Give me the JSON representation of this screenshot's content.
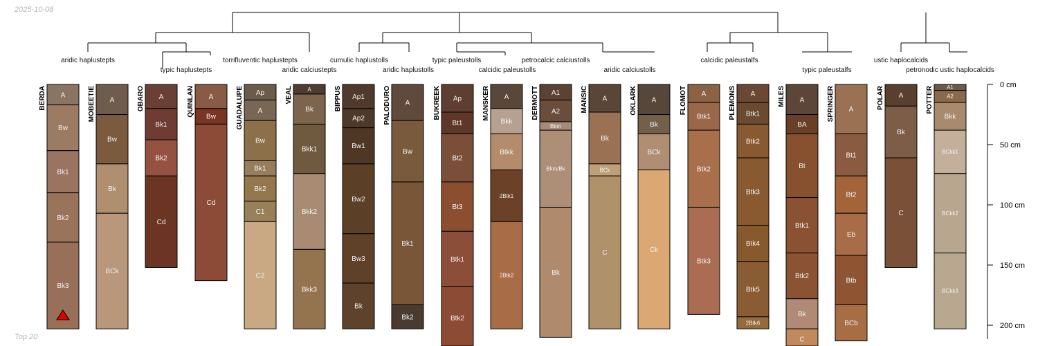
{
  "date": "2025-10-08",
  "footer": "Top 20",
  "depth_axis": {
    "unit": "cm",
    "ticks": [
      {
        "depth": 0,
        "label": "0 cm"
      },
      {
        "depth": 50,
        "label": "50 cm"
      },
      {
        "depth": 100,
        "label": "100 cm"
      },
      {
        "depth": 150,
        "label": "150 cm"
      },
      {
        "depth": 200,
        "label": "200 cm"
      }
    ]
  },
  "groups": [
    {
      "label": "aridic haplustepts"
    },
    {
      "label": "typic haplustepts"
    },
    {
      "label": "torrifluventic haplustepts"
    },
    {
      "label": "aridic calciustepts"
    },
    {
      "label": "cumulic haplustolls"
    },
    {
      "label": "aridic haplustolls"
    },
    {
      "label": "typic paleustolls"
    },
    {
      "label": "calcidic paleustolls"
    },
    {
      "label": "petrocalcic calciustolls"
    },
    {
      "label": "aridic calciustolls"
    },
    {
      "label": "calcidic paleustalfs"
    },
    {
      "label": "typic paleustalfs"
    },
    {
      "label": "ustic haplocalcids"
    },
    {
      "label": "petronodic ustic haplocalcids"
    }
  ],
  "profiles": [
    {
      "name": "BERDA",
      "marker": "red-triangle",
      "horizons": [
        {
          "name": "A",
          "top": 0,
          "bottom": 17,
          "color": "#8a7562"
        },
        {
          "name": "Bw",
          "top": 17,
          "bottom": 55,
          "color": "#9b7b62"
        },
        {
          "name": "Bk1",
          "top": 55,
          "bottom": 90,
          "color": "#9a7460"
        },
        {
          "name": "Bk2",
          "top": 90,
          "bottom": 131,
          "color": "#9a735b"
        },
        {
          "name": "Bk3",
          "top": 131,
          "bottom": 203,
          "color": "#98705a"
        }
      ]
    },
    {
      "name": "MOBEETIE",
      "horizons": [
        {
          "name": "A",
          "top": 0,
          "bottom": 25,
          "color": "#6f5c4c"
        },
        {
          "name": "Bw",
          "top": 25,
          "bottom": 66,
          "color": "#7b5a3e"
        },
        {
          "name": "Bk",
          "top": 66,
          "bottom": 107,
          "color": "#b08e70"
        },
        {
          "name": "BCk",
          "top": 107,
          "bottom": 203,
          "color": "#b8977b"
        }
      ]
    },
    {
      "name": "OBARO",
      "horizons": [
        {
          "name": "A",
          "top": 0,
          "bottom": 20,
          "color": "#6a4034"
        },
        {
          "name": "Bk1",
          "top": 20,
          "bottom": 46,
          "color": "#6e3c31"
        },
        {
          "name": "Bk2",
          "top": 46,
          "bottom": 76,
          "color": "#955240"
        },
        {
          "name": "Cd",
          "top": 76,
          "bottom": 152,
          "color": "#6c3523"
        }
      ]
    },
    {
      "name": "QUINLAN",
      "horizons": [
        {
          "name": "A",
          "top": 0,
          "bottom": 20,
          "color": "#8a5b44"
        },
        {
          "name": "Bw",
          "top": 20,
          "bottom": 33,
          "color": "#7a3422"
        },
        {
          "name": "Cd",
          "top": 33,
          "bottom": 163,
          "color": "#8b4b36"
        }
      ]
    },
    {
      "name": "GUADALUPE",
      "horizons": [
        {
          "name": "Ap",
          "top": 0,
          "bottom": 13,
          "color": "#6a5b4c"
        },
        {
          "name": "A",
          "top": 13,
          "bottom": 30,
          "color": "#7a6654"
        },
        {
          "name": "Bw",
          "top": 30,
          "bottom": 63,
          "color": "#8b7049"
        },
        {
          "name": "Bk1",
          "top": 63,
          "bottom": 76,
          "color": "#957d5d"
        },
        {
          "name": "Bk2",
          "top": 76,
          "bottom": 97,
          "color": "#94774d"
        },
        {
          "name": "C1",
          "top": 97,
          "bottom": 114,
          "color": "#9a8059"
        },
        {
          "name": "C2",
          "top": 114,
          "bottom": 203,
          "color": "#c8a983"
        }
      ]
    },
    {
      "name": "VEAL",
      "horizons": [
        {
          "name": "A",
          "top": 0,
          "bottom": 8,
          "color": "#4d3c2f"
        },
        {
          "name": "Bk",
          "top": 8,
          "bottom": 33,
          "color": "#7d654d"
        },
        {
          "name": "Bkk1",
          "top": 33,
          "bottom": 74,
          "color": "#6f5a40"
        },
        {
          "name": "Bkk2",
          "top": 74,
          "bottom": 137,
          "color": "#a88b72"
        },
        {
          "name": "Bkk3",
          "top": 137,
          "bottom": 203,
          "color": "#94744f"
        }
      ]
    },
    {
      "name": "BIPPUS",
      "horizons": [
        {
          "name": "Ap1",
          "top": 0,
          "bottom": 20,
          "color": "#4f3a2b"
        },
        {
          "name": "Ap2",
          "top": 20,
          "bottom": 36,
          "color": "#4e3828"
        },
        {
          "name": "Bw1",
          "top": 36,
          "bottom": 66,
          "color": "#4e3724"
        },
        {
          "name": "Bw2",
          "top": 66,
          "bottom": 124,
          "color": "#5b3f27"
        },
        {
          "name": "Bw3",
          "top": 124,
          "bottom": 165,
          "color": "#5f4129"
        },
        {
          "name": "Bk",
          "top": 165,
          "bottom": 203,
          "color": "#5e422b"
        }
      ]
    },
    {
      "name": "PALODURO",
      "horizons": [
        {
          "name": "A",
          "top": 0,
          "bottom": 30,
          "color": "#5f4a3c"
        },
        {
          "name": "Bw",
          "top": 30,
          "bottom": 81,
          "color": "#7a5a3c"
        },
        {
          "name": "Bk1",
          "top": 81,
          "bottom": 183,
          "color": "#7a5638"
        },
        {
          "name": "Bk2",
          "top": 183,
          "bottom": 203,
          "color": "#4a3b30"
        }
      ]
    },
    {
      "name": "BUKREEK",
      "horizons": [
        {
          "name": "Ap",
          "top": 0,
          "bottom": 23,
          "color": "#5e3e30"
        },
        {
          "name": "Bt1",
          "top": 23,
          "bottom": 41,
          "color": "#5f3728"
        },
        {
          "name": "Bt2",
          "top": 41,
          "bottom": 81,
          "color": "#7b4e3a"
        },
        {
          "name": "Bt3",
          "top": 81,
          "bottom": 122,
          "color": "#8b4f30"
        },
        {
          "name": "Btk1",
          "top": 122,
          "bottom": 168,
          "color": "#8c4e38"
        },
        {
          "name": "Btk2",
          "top": 168,
          "bottom": 220,
          "color": "#8c4b35"
        }
      ]
    },
    {
      "name": "MANSKER",
      "horizons": [
        {
          "name": "A",
          "top": 0,
          "bottom": 20,
          "color": "#59473a"
        },
        {
          "name": "Bkk",
          "top": 20,
          "bottom": 41,
          "color": "#b6a090"
        },
        {
          "name": "Btkk",
          "top": 41,
          "bottom": 71,
          "color": "#b48c6c"
        },
        {
          "name": "2Btk1",
          "top": 71,
          "bottom": 114,
          "color": "#6b4128"
        },
        {
          "name": "2Btk2",
          "top": 114,
          "bottom": 203,
          "color": "#a86c47"
        }
      ]
    },
    {
      "name": "DERMOTT",
      "horizons": [
        {
          "name": "A1",
          "top": 0,
          "bottom": 13,
          "color": "#5c4232"
        },
        {
          "name": "A2",
          "top": 13,
          "bottom": 31,
          "color": "#6a4d3a"
        },
        {
          "name": "Bkm",
          "top": 31,
          "bottom": 38,
          "color": "#a68b79"
        },
        {
          "name": "Bkm/Bk",
          "top": 38,
          "bottom": 102,
          "color": "#ad8f78"
        },
        {
          "name": "Bk",
          "top": 102,
          "bottom": 210,
          "color": "#b08a6d"
        }
      ]
    },
    {
      "name": "MANSIC",
      "horizons": [
        {
          "name": "A",
          "top": 0,
          "bottom": 23,
          "color": "#5a4637"
        },
        {
          "name": "Bk",
          "top": 23,
          "bottom": 66,
          "color": "#9a7253"
        },
        {
          "name": "BCk",
          "top": 66,
          "bottom": 76,
          "color": "#c0a078"
        },
        {
          "name": "C",
          "top": 76,
          "bottom": 203,
          "color": "#b0926a"
        }
      ]
    },
    {
      "name": "OKLARK",
      "horizons": [
        {
          "name": "A",
          "top": 0,
          "bottom": 25,
          "color": "#57473a"
        },
        {
          "name": "Bk",
          "top": 25,
          "bottom": 41,
          "color": "#74604a"
        },
        {
          "name": "BCk",
          "top": 41,
          "bottom": 71,
          "color": "#b08e73"
        },
        {
          "name": "Ck",
          "top": 71,
          "bottom": 203,
          "color": "#dba772"
        }
      ]
    },
    {
      "name": "FLOMOT",
      "horizons": [
        {
          "name": "A",
          "top": 0,
          "bottom": 15,
          "color": "#8b6243"
        },
        {
          "name": "Btk1",
          "top": 15,
          "bottom": 38,
          "color": "#9a6748"
        },
        {
          "name": "Btk2",
          "top": 38,
          "bottom": 102,
          "color": "#a96f4a"
        },
        {
          "name": "Btk3",
          "top": 102,
          "bottom": 191,
          "color": "#aa6c52"
        }
      ]
    },
    {
      "name": "PLEMONS",
      "horizons": [
        {
          "name": "A",
          "top": 0,
          "bottom": 15,
          "color": "#6a4834"
        },
        {
          "name": "Btk1",
          "top": 15,
          "bottom": 33,
          "color": "#6c4a30"
        },
        {
          "name": "Btk2",
          "top": 33,
          "bottom": 61,
          "color": "#885a31"
        },
        {
          "name": "Btk3",
          "top": 61,
          "bottom": 117,
          "color": "#895a30"
        },
        {
          "name": "Btk4",
          "top": 117,
          "bottom": 147,
          "color": "#875a2e"
        },
        {
          "name": "Btk5",
          "top": 147,
          "bottom": 193,
          "color": "#8a5c33"
        },
        {
          "name": "2Btk6",
          "top": 193,
          "bottom": 203,
          "color": "#966b3c"
        }
      ]
    },
    {
      "name": "MILES",
      "horizons": [
        {
          "name": "A",
          "top": 0,
          "bottom": 25,
          "color": "#5c4637"
        },
        {
          "name": "BA",
          "top": 25,
          "bottom": 41,
          "color": "#6a3f28"
        },
        {
          "name": "Bt",
          "top": 41,
          "bottom": 94,
          "color": "#87502f"
        },
        {
          "name": "Btk1",
          "top": 94,
          "bottom": 140,
          "color": "#8a5232"
        },
        {
          "name": "Btk2",
          "top": 140,
          "bottom": 178,
          "color": "#8b5332"
        },
        {
          "name": "Bk",
          "top": 178,
          "bottom": 203,
          "color": "#b08a75"
        },
        {
          "name": "C",
          "top": 203,
          "bottom": 220,
          "color": "#c28a5c"
        }
      ]
    },
    {
      "name": "SPRINGER",
      "horizons": [
        {
          "name": "A",
          "top": 0,
          "bottom": 41,
          "color": "#9a7152"
        },
        {
          "name": "Bt1",
          "top": 41,
          "bottom": 76,
          "color": "#8a5b40"
        },
        {
          "name": "Bt2",
          "top": 76,
          "bottom": 107,
          "color": "#a26438"
        },
        {
          "name": "Eb",
          "top": 107,
          "bottom": 142,
          "color": "#a86d48"
        },
        {
          "name": "Btb",
          "top": 142,
          "bottom": 183,
          "color": "#8f5532"
        },
        {
          "name": "BCb",
          "top": 183,
          "bottom": 213,
          "color": "#a86e43"
        }
      ]
    },
    {
      "name": "POLAR",
      "horizons": [
        {
          "name": "A",
          "top": 0,
          "bottom": 18,
          "color": "#5a3e2e"
        },
        {
          "name": "Bk",
          "top": 18,
          "bottom": 61,
          "color": "#7d5c48"
        },
        {
          "name": "C",
          "top": 61,
          "bottom": 152,
          "color": "#7a5039"
        }
      ]
    },
    {
      "name": "POTTER",
      "horizons": [
        {
          "name": "A1",
          "top": 0,
          "bottom": 5,
          "color": "#6b5a48"
        },
        {
          "name": "A2",
          "top": 5,
          "bottom": 15,
          "color": "#8b6a4c"
        },
        {
          "name": "Bkk",
          "top": 15,
          "bottom": 38,
          "color": "#a88a6e"
        },
        {
          "name": "BCkk1",
          "top": 38,
          "bottom": 74,
          "color": "#c4b09a"
        },
        {
          "name": "BCkk2",
          "top": 74,
          "bottom": 140,
          "color": "#b9a68e"
        },
        {
          "name": "BCkk3",
          "top": 140,
          "bottom": 203,
          "color": "#b9a890"
        }
      ]
    }
  ]
}
